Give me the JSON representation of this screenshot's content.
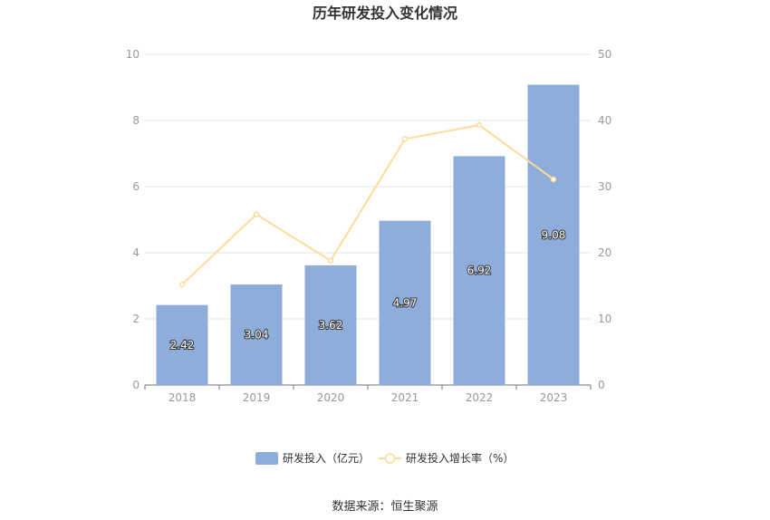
{
  "chart_data": {
    "type": "bar",
    "title": "历年研发投入变化情况",
    "categories": [
      "2018",
      "2019",
      "2020",
      "2021",
      "2022",
      "2023"
    ],
    "series": [
      {
        "name": "研发投入（亿元）",
        "type": "bar",
        "axis": "left",
        "values": [
          2.42,
          3.04,
          3.62,
          4.97,
          6.92,
          9.08
        ],
        "labels": [
          "2.42",
          "3.04",
          "3.62",
          "4.97",
          "6.92",
          "9.08"
        ],
        "color": "#8eaddb"
      },
      {
        "name": "研发投入增长率（%）",
        "type": "line",
        "axis": "right",
        "values": [
          15.2,
          25.8,
          18.8,
          37.2,
          39.3,
          31.1
        ],
        "color": "#fcdc9b"
      }
    ],
    "y_left": {
      "min": 0,
      "max": 10,
      "ticks": [
        "0",
        "2",
        "4",
        "6",
        "8",
        "10"
      ]
    },
    "y_right": {
      "min": 0,
      "max": 50,
      "ticks": [
        "0",
        "10",
        "20",
        "30",
        "40",
        "50"
      ]
    },
    "grid": true,
    "legend_position": "bottom-center"
  },
  "source": "数据来源：恒生聚源"
}
